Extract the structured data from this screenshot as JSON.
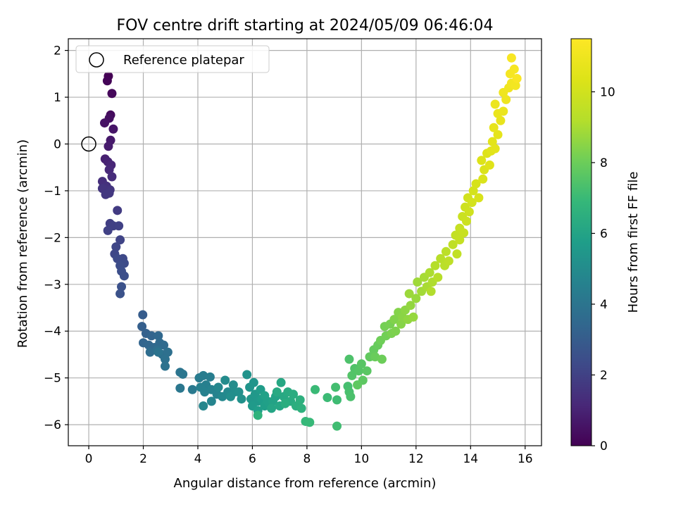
{
  "chart_data": {
    "type": "scatter",
    "title": "FOV centre drift starting at 2024/05/09 06:46:04",
    "xlabel": "Angular distance from reference (arcmin)",
    "ylabel": "Rotation from reference (arcmin)",
    "xlim": [
      -0.75,
      16.6
    ],
    "ylim": [
      -6.45,
      2.25
    ],
    "xticks": [
      0,
      2,
      4,
      6,
      8,
      10,
      12,
      14,
      16
    ],
    "yticks": [
      -6,
      -5,
      -4,
      -3,
      -2,
      -1,
      0,
      1,
      2
    ],
    "grid": true,
    "legend": {
      "position": "upper-left",
      "label": "Reference platepar"
    },
    "reference_point": {
      "x": 0,
      "y": 0
    },
    "colorbar": {
      "label": "Hours from first FF file",
      "range": [
        0,
        11.5
      ],
      "ticks": [
        0,
        2,
        4,
        6,
        8,
        10
      ],
      "colormap": "viridis"
    },
    "series": [
      {
        "points": [
          [
            0.72,
            1.45,
            0.0
          ],
          [
            0.68,
            1.35,
            0.1
          ],
          [
            0.85,
            1.08,
            0.2
          ],
          [
            0.8,
            0.62,
            0.3
          ],
          [
            0.75,
            0.55,
            0.4
          ],
          [
            0.58,
            0.45,
            0.5
          ],
          [
            0.9,
            0.32,
            0.6
          ],
          [
            0.8,
            0.08,
            0.7
          ],
          [
            0.72,
            -0.05,
            0.8
          ],
          [
            0.6,
            -0.32,
            0.9
          ],
          [
            0.7,
            -0.38,
            1.0
          ],
          [
            0.82,
            -0.45,
            1.1
          ],
          [
            0.75,
            -0.55,
            1.2
          ],
          [
            0.85,
            -0.7,
            1.3
          ],
          [
            0.5,
            -0.8,
            1.4
          ],
          [
            0.65,
            -0.9,
            1.5
          ],
          [
            0.78,
            -0.98,
            1.6
          ],
          [
            0.5,
            -0.95,
            1.6
          ],
          [
            0.62,
            -1.08,
            1.7
          ],
          [
            0.75,
            -1.05,
            1.7
          ],
          [
            1.05,
            -1.42,
            1.8
          ],
          [
            0.78,
            -1.7,
            1.9
          ],
          [
            0.9,
            -1.75,
            1.95
          ],
          [
            1.1,
            -1.75,
            2.0
          ],
          [
            0.7,
            -1.85,
            2.0
          ],
          [
            1.15,
            -2.05,
            2.1
          ],
          [
            1.0,
            -2.2,
            2.15
          ],
          [
            0.95,
            -2.35,
            2.2
          ],
          [
            1.25,
            -2.45,
            2.25
          ],
          [
            1.05,
            -2.45,
            2.3
          ],
          [
            1.3,
            -2.55,
            2.35
          ],
          [
            1.15,
            -2.6,
            2.4
          ],
          [
            1.2,
            -2.72,
            2.45
          ],
          [
            1.3,
            -2.82,
            2.5
          ],
          [
            1.2,
            -3.05,
            2.55
          ],
          [
            1.15,
            -3.2,
            2.6
          ],
          [
            1.98,
            -3.65,
            3.0
          ],
          [
            1.95,
            -3.9,
            3.1
          ],
          [
            2.1,
            -4.05,
            3.2
          ],
          [
            2.3,
            -4.1,
            3.3
          ],
          [
            2.0,
            -4.25,
            3.35
          ],
          [
            2.2,
            -4.3,
            3.4
          ],
          [
            2.55,
            -4.1,
            3.45
          ],
          [
            2.4,
            -4.35,
            3.5
          ],
          [
            2.6,
            -4.25,
            3.55
          ],
          [
            2.75,
            -4.3,
            3.6
          ],
          [
            2.25,
            -4.45,
            3.65
          ],
          [
            2.5,
            -4.4,
            3.7
          ],
          [
            2.7,
            -4.5,
            3.75
          ],
          [
            2.9,
            -4.45,
            3.8
          ],
          [
            2.8,
            -4.6,
            3.85
          ],
          [
            2.8,
            -4.75,
            3.9
          ],
          [
            2.55,
            -4.45,
            3.95
          ],
          [
            3.35,
            -4.88,
            4.0
          ],
          [
            3.45,
            -4.92,
            4.05
          ],
          [
            3.35,
            -5.22,
            4.1
          ],
          [
            3.8,
            -5.25,
            4.2
          ],
          [
            4.05,
            -5.0,
            4.3
          ],
          [
            4.2,
            -4.95,
            4.35
          ],
          [
            4.45,
            -4.98,
            4.4
          ],
          [
            4.3,
            -5.15,
            4.45
          ],
          [
            4.1,
            -5.2,
            4.5
          ],
          [
            4.25,
            -5.3,
            4.55
          ],
          [
            4.5,
            -5.25,
            4.6
          ],
          [
            4.7,
            -5.35,
            4.65
          ],
          [
            4.5,
            -5.5,
            4.7
          ],
          [
            4.2,
            -5.6,
            4.75
          ],
          [
            4.75,
            -5.2,
            4.8
          ],
          [
            4.9,
            -5.4,
            4.85
          ],
          [
            5.1,
            -5.3,
            4.9
          ],
          [
            5.0,
            -5.05,
            4.95
          ],
          [
            5.3,
            -5.15,
            5.0
          ],
          [
            5.35,
            -5.3,
            5.05
          ],
          [
            5.2,
            -5.4,
            5.1
          ],
          [
            5.5,
            -5.3,
            5.15
          ],
          [
            5.6,
            -5.45,
            5.2
          ],
          [
            5.8,
            -4.93,
            5.3
          ],
          [
            5.9,
            -5.2,
            5.35
          ],
          [
            6.05,
            -5.1,
            5.4
          ],
          [
            5.95,
            -5.45,
            5.45
          ],
          [
            6.1,
            -5.35,
            5.5
          ],
          [
            6.2,
            -5.5,
            5.55
          ],
          [
            6.0,
            -5.6,
            5.6
          ],
          [
            6.3,
            -5.25,
            5.65
          ],
          [
            6.35,
            -5.45,
            5.7
          ],
          [
            6.2,
            -5.7,
            5.75
          ],
          [
            6.45,
            -5.6,
            5.8
          ],
          [
            6.55,
            -5.5,
            5.85
          ],
          [
            6.45,
            -5.38,
            5.9
          ],
          [
            6.75,
            -5.5,
            5.95
          ],
          [
            6.85,
            -5.4,
            6.0
          ],
          [
            6.7,
            -5.65,
            6.05
          ],
          [
            7.0,
            -5.6,
            6.1
          ],
          [
            7.05,
            -5.1,
            6.15
          ],
          [
            7.15,
            -5.4,
            6.2
          ],
          [
            6.9,
            -5.3,
            6.25
          ],
          [
            7.3,
            -5.3,
            6.3
          ],
          [
            7.4,
            -5.5,
            6.35
          ],
          [
            7.5,
            -5.35,
            6.4
          ],
          [
            7.2,
            -5.55,
            6.45
          ],
          [
            7.6,
            -5.6,
            6.5
          ],
          [
            7.75,
            -5.47,
            6.55
          ],
          [
            7.8,
            -5.65,
            6.6
          ],
          [
            6.2,
            -5.8,
            6.65
          ],
          [
            7.95,
            -5.93,
            6.9
          ],
          [
            8.1,
            -5.95,
            6.95
          ],
          [
            8.3,
            -5.25,
            7.0
          ],
          [
            8.75,
            -5.42,
            7.05
          ],
          [
            9.1,
            -5.47,
            7.1
          ],
          [
            9.1,
            -6.03,
            7.15
          ],
          [
            9.05,
            -5.2,
            7.2
          ],
          [
            9.5,
            -5.18,
            7.25
          ],
          [
            9.55,
            -5.3,
            7.3
          ],
          [
            9.6,
            -5.4,
            7.35
          ],
          [
            9.55,
            -4.6,
            7.4
          ],
          [
            9.75,
            -4.8,
            7.45
          ],
          [
            9.65,
            -4.95,
            7.5
          ],
          [
            9.9,
            -4.85,
            7.55
          ],
          [
            10.0,
            -4.7,
            7.6
          ],
          [
            10.2,
            -4.85,
            7.65
          ],
          [
            10.05,
            -5.05,
            7.7
          ],
          [
            9.85,
            -5.15,
            7.75
          ],
          [
            10.3,
            -4.55,
            7.8
          ],
          [
            10.45,
            -4.4,
            7.85
          ],
          [
            10.6,
            -4.3,
            7.9
          ],
          [
            10.5,
            -4.55,
            7.95
          ],
          [
            10.75,
            -4.6,
            8.0
          ],
          [
            10.7,
            -4.2,
            8.05
          ],
          [
            10.9,
            -4.1,
            8.1
          ],
          [
            10.85,
            -3.9,
            8.15
          ],
          [
            11.05,
            -3.85,
            8.2
          ],
          [
            11.1,
            -4.05,
            8.25
          ],
          [
            11.25,
            -4.0,
            8.3
          ],
          [
            11.2,
            -3.75,
            8.35
          ],
          [
            11.35,
            -3.6,
            8.4
          ],
          [
            11.45,
            -3.85,
            8.45
          ],
          [
            11.5,
            -3.7,
            8.5
          ],
          [
            11.6,
            -3.55,
            8.55
          ],
          [
            11.7,
            -3.75,
            8.6
          ],
          [
            11.8,
            -3.45,
            8.65
          ],
          [
            11.9,
            -3.7,
            8.7
          ],
          [
            12.0,
            -3.3,
            8.75
          ],
          [
            11.75,
            -3.2,
            8.8
          ],
          [
            12.05,
            -2.95,
            8.85
          ],
          [
            12.2,
            -3.15,
            8.9
          ],
          [
            12.3,
            -2.85,
            8.95
          ],
          [
            12.4,
            -3.05,
            9.0
          ],
          [
            12.5,
            -2.75,
            9.05
          ],
          [
            12.6,
            -2.95,
            9.1
          ],
          [
            12.55,
            -3.15,
            9.15
          ],
          [
            12.7,
            -2.6,
            9.2
          ],
          [
            12.8,
            -2.85,
            9.25
          ],
          [
            12.9,
            -2.45,
            9.3
          ],
          [
            13.05,
            -2.6,
            9.35
          ],
          [
            13.1,
            -2.3,
            9.4
          ],
          [
            13.2,
            -2.5,
            9.45
          ],
          [
            13.35,
            -2.15,
            9.5
          ],
          [
            13.5,
            -2.35,
            9.55
          ],
          [
            13.45,
            -1.95,
            9.6
          ],
          [
            13.6,
            -2.05,
            9.65
          ],
          [
            13.6,
            -1.8,
            9.7
          ],
          [
            13.75,
            -1.9,
            9.75
          ],
          [
            13.7,
            -1.55,
            9.8
          ],
          [
            13.85,
            -1.65,
            9.85
          ],
          [
            13.8,
            -1.35,
            9.9
          ],
          [
            13.95,
            -1.45,
            9.95
          ],
          [
            13.9,
            -1.15,
            10.0
          ],
          [
            14.05,
            -1.25,
            10.05
          ],
          [
            14.1,
            -1.0,
            10.1
          ],
          [
            14.2,
            -0.85,
            10.15
          ],
          [
            14.3,
            -1.15,
            10.2
          ],
          [
            14.45,
            -0.75,
            10.25
          ],
          [
            14.5,
            -0.55,
            10.3
          ],
          [
            14.4,
            -0.35,
            10.35
          ],
          [
            14.6,
            -0.2,
            10.4
          ],
          [
            14.7,
            -0.45,
            10.45
          ],
          [
            14.75,
            -0.15,
            10.5
          ],
          [
            14.8,
            0.05,
            10.55
          ],
          [
            14.9,
            -0.1,
            10.6
          ],
          [
            15.0,
            0.2,
            10.65
          ],
          [
            14.85,
            0.35,
            10.7
          ],
          [
            15.1,
            0.5,
            10.75
          ],
          [
            15.0,
            0.65,
            10.8
          ],
          [
            15.2,
            0.7,
            10.85
          ],
          [
            14.9,
            0.85,
            10.9
          ],
          [
            15.3,
            0.95,
            10.95
          ],
          [
            15.2,
            1.1,
            11.0
          ],
          [
            15.4,
            1.2,
            11.05
          ],
          [
            15.5,
            1.3,
            11.1
          ],
          [
            15.65,
            1.25,
            11.15
          ],
          [
            15.45,
            1.5,
            11.2
          ],
          [
            15.6,
            1.6,
            11.25
          ],
          [
            15.5,
            1.84,
            11.3
          ],
          [
            15.7,
            1.4,
            11.35
          ]
        ]
      }
    ]
  }
}
